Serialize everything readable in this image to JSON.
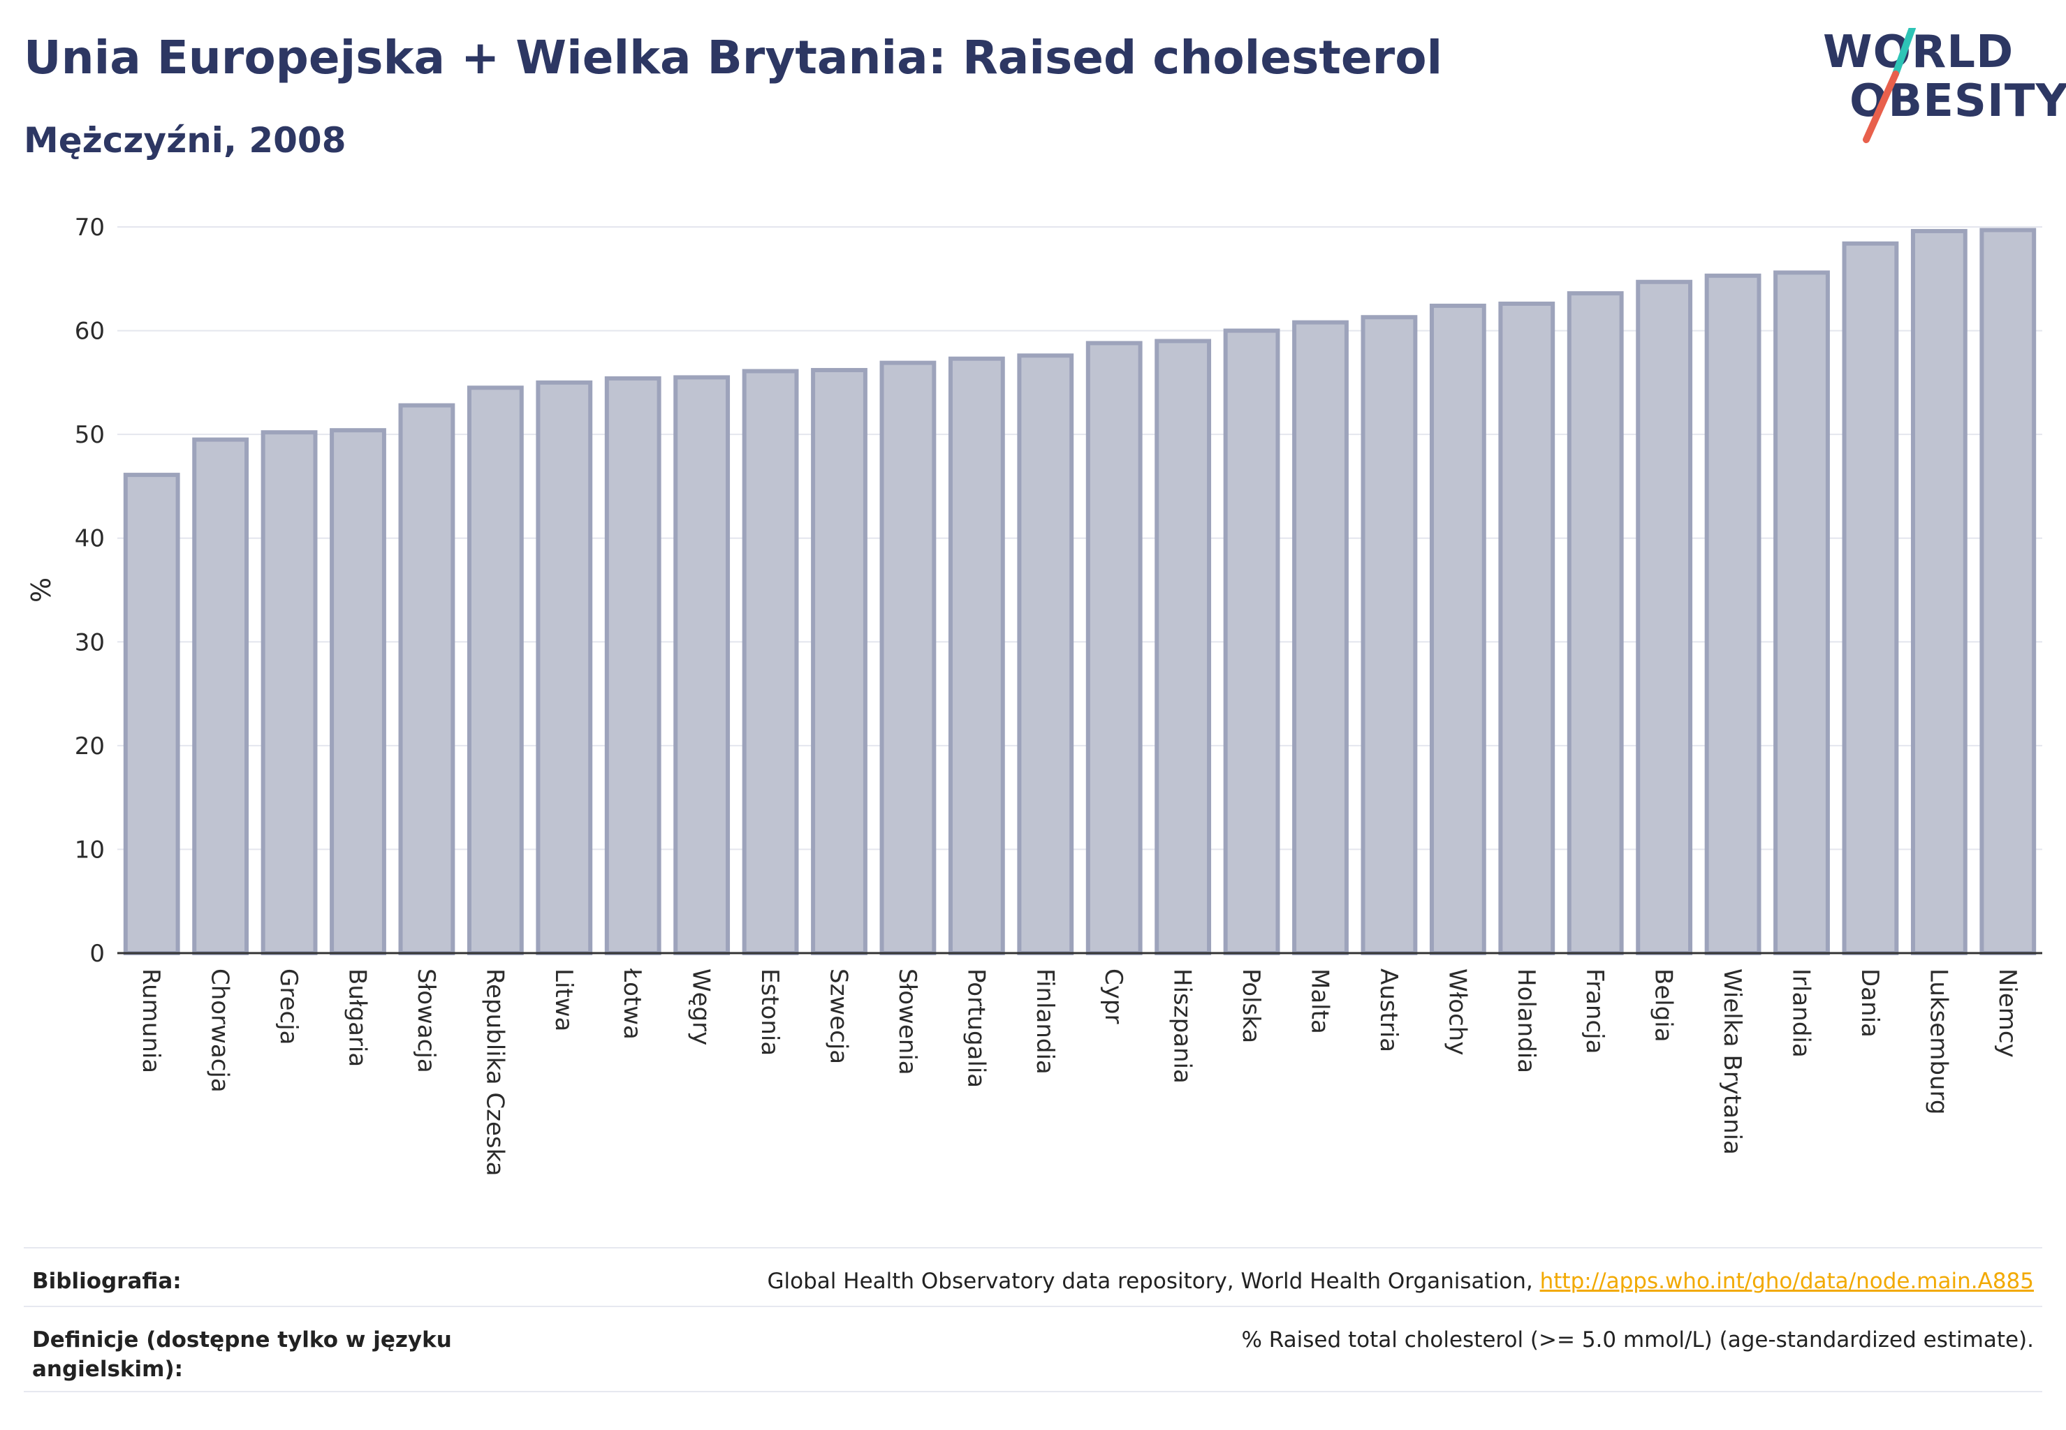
{
  "header": {
    "title": "Unia Europejska + Wielka Brytania: Raised cholesterol",
    "subtitle": "Mężczyźni, 2008"
  },
  "logo": {
    "line1": "WORLD",
    "line2": "OBESITY",
    "slash_colors": [
      "#2ec4b6",
      "#e8604c"
    ]
  },
  "chart_data": {
    "type": "bar",
    "ylabel": "%",
    "xlabel": "",
    "ylim": [
      0,
      70
    ],
    "yticks": [
      0,
      10,
      20,
      30,
      40,
      50,
      60,
      70
    ],
    "grid": true,
    "bar_fill": "#bfc3d1",
    "bar_stroke": "#9da3bb",
    "categories": [
      "Rumunia",
      "Chorwacja",
      "Grecja",
      "Bułgaria",
      "Słowacja",
      "Republika Czeska",
      "Litwa",
      "Łotwa",
      "Węgry",
      "Estonia",
      "Szwecja",
      "Słowenia",
      "Portugalia",
      "Finlandia",
      "Cypr",
      "Hiszpania",
      "Polska",
      "Malta",
      "Austria",
      "Włochy",
      "Holandia",
      "Francja",
      "Belgia",
      "Wielka Brytania",
      "Irlandia",
      "Dania",
      "Luksemburg",
      "Niemcy"
    ],
    "values": [
      46.1,
      49.5,
      50.2,
      50.4,
      52.8,
      54.5,
      55.0,
      55.4,
      55.5,
      56.1,
      56.2,
      56.9,
      57.3,
      57.6,
      58.8,
      59.0,
      60.0,
      60.8,
      61.3,
      62.4,
      62.6,
      63.6,
      64.7,
      65.3,
      65.6,
      68.4,
      69.6,
      69.7
    ]
  },
  "footer": {
    "bib_label": "Bibliografia:",
    "bib_text": "Global Health Observatory data repository, World Health Organisation, ",
    "bib_link": "http://apps.who.int/gho/data/node.main.A885",
    "def_label": "Definicje (dostępne tylko w języku angielskim):",
    "def_text": "% Raised total cholesterol (>= 5.0 mmol/L) (age-standardized estimate)."
  }
}
